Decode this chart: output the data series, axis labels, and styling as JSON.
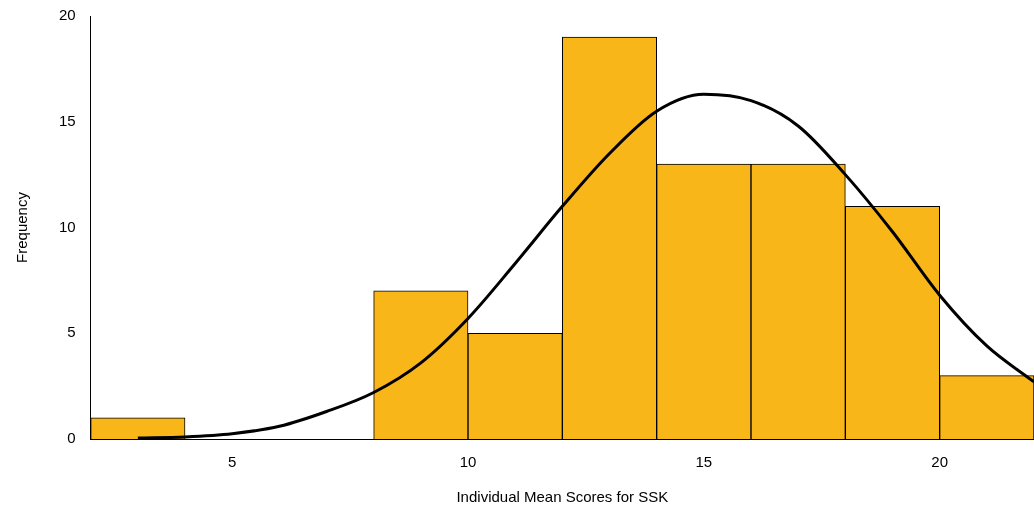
{
  "chart_data": {
    "type": "histogram",
    "xlabel": "Individual Mean Scores for SSK",
    "ylabel": "Frequency",
    "bins": [
      2,
      4,
      6,
      8,
      10,
      12,
      14,
      16,
      18,
      20,
      22
    ],
    "values": [
      1,
      0,
      0,
      7,
      5,
      19,
      13,
      13,
      11,
      3
    ],
    "color": "#f8b618",
    "xlim": [
      2,
      22
    ],
    "xticks": [
      5,
      10,
      15,
      20
    ],
    "ylim": [
      0,
      20
    ],
    "yticks": [
      0,
      5,
      10,
      15,
      20
    ],
    "grid": false,
    "legend": false,
    "series": [
      {
        "type": "line",
        "color": "#000000",
        "x": [
          3,
          4,
          5,
          6,
          7,
          8,
          9,
          10,
          11,
          12,
          13,
          14,
          15,
          16,
          17,
          18,
          19,
          20,
          21,
          22
        ],
        "values": [
          0.05,
          0.1,
          0.25,
          0.6,
          1.3,
          2.2,
          3.6,
          5.7,
          8.3,
          11,
          13.5,
          15.5,
          16.3,
          16,
          14.8,
          12.5,
          9.8,
          6.8,
          4.4,
          2.7
        ]
      }
    ]
  }
}
